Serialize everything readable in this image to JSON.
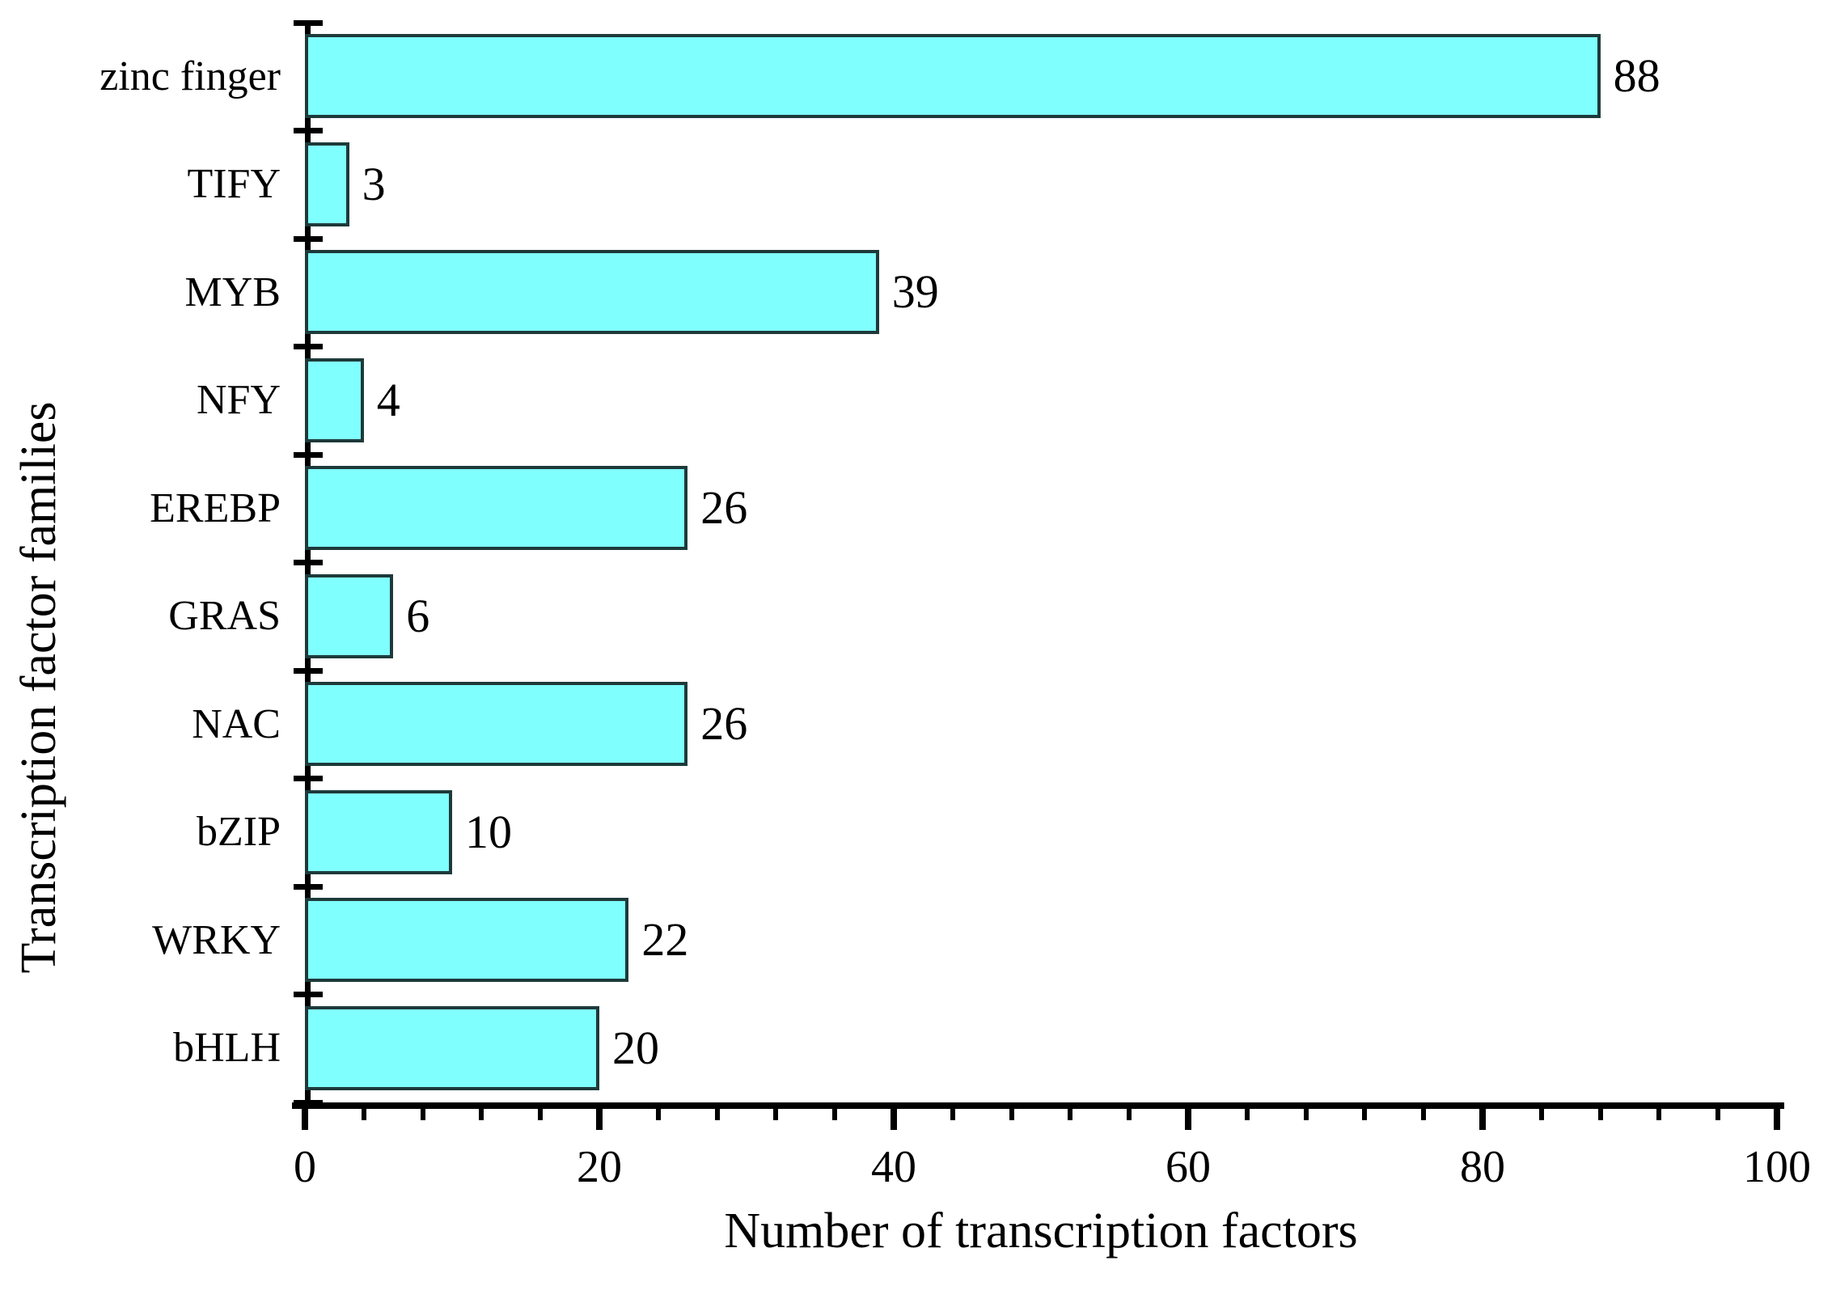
{
  "figure": {
    "background_color": "#ffffff"
  },
  "chart_data": {
    "type": "bar",
    "orientation": "horizontal",
    "title": "",
    "xlabel": "Number of transcription factors",
    "ylabel": "Transcription factor families",
    "categories": [
      "zinc finger",
      "TIFY",
      "MYB",
      "NFY",
      "EREBP",
      "GRAS",
      "NAC",
      "bZIP",
      "WRKY",
      "bHLH"
    ],
    "values": [
      88,
      3,
      39,
      4,
      26,
      6,
      26,
      10,
      22,
      20
    ],
    "xlim": [
      0,
      100
    ],
    "x_major_ticks": [
      0,
      20,
      40,
      60,
      80,
      100
    ],
    "x_minor_tick_step": 4,
    "grid": false,
    "legend": false,
    "bar_fill_color": "#80ffff",
    "bar_border_color": "#1e3a3a",
    "axis_color": "#000000",
    "text_color": "#000000"
  }
}
